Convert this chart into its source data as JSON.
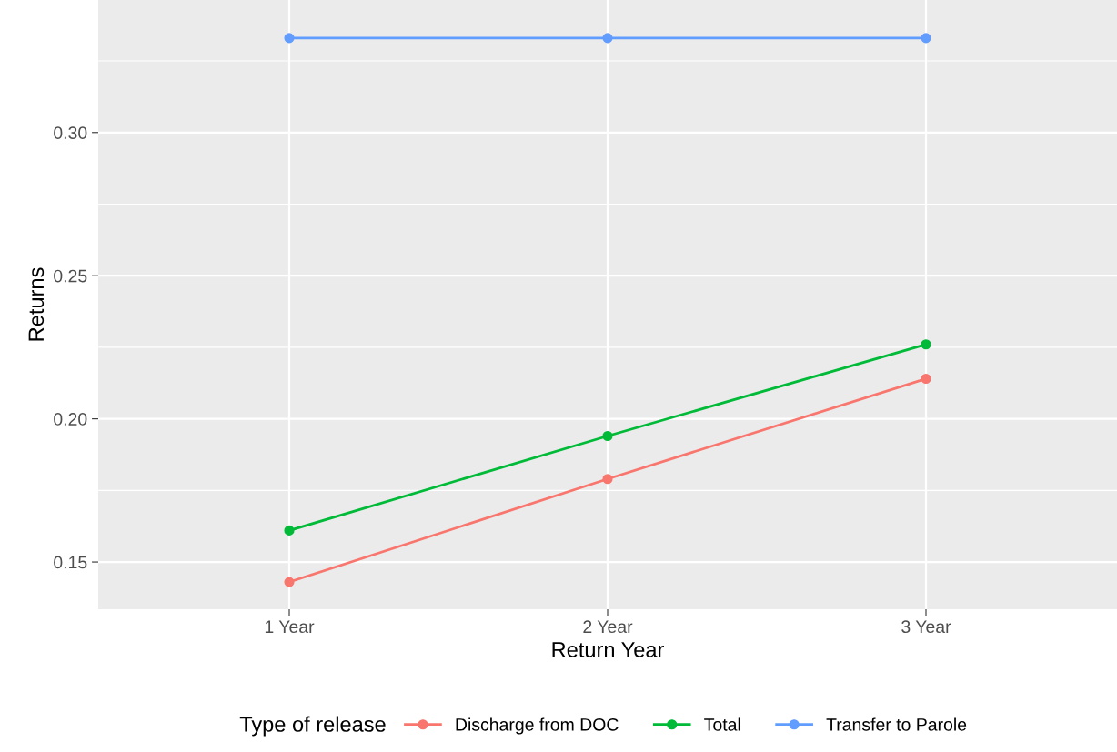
{
  "chart_data": {
    "type": "line",
    "xlabel": "Return Year",
    "ylabel": "Returns",
    "legend_title": "Type of release",
    "categories": [
      "1 Year",
      "2 Year",
      "3 Year"
    ],
    "series": [
      {
        "name": "Discharge from DOC",
        "color": "#f8766d",
        "values": [
          0.143,
          0.179,
          0.214
        ]
      },
      {
        "name": "Total",
        "color": "#00ba38",
        "values": [
          0.161,
          0.194,
          0.226
        ]
      },
      {
        "name": "Transfer to Parole",
        "color": "#619cff",
        "values": [
          0.333,
          0.333,
          0.333
        ]
      }
    ],
    "ylim": [
      0.1335,
      0.3463
    ],
    "yticks": [
      {
        "value": 0.15,
        "label": "0.15"
      },
      {
        "value": 0.2,
        "label": "0.20"
      },
      {
        "value": 0.25,
        "label": "0.25"
      },
      {
        "value": 0.3,
        "label": "0.30"
      }
    ],
    "grid": true,
    "legend": "bottom",
    "marker": "circle",
    "line_style": "solid"
  }
}
